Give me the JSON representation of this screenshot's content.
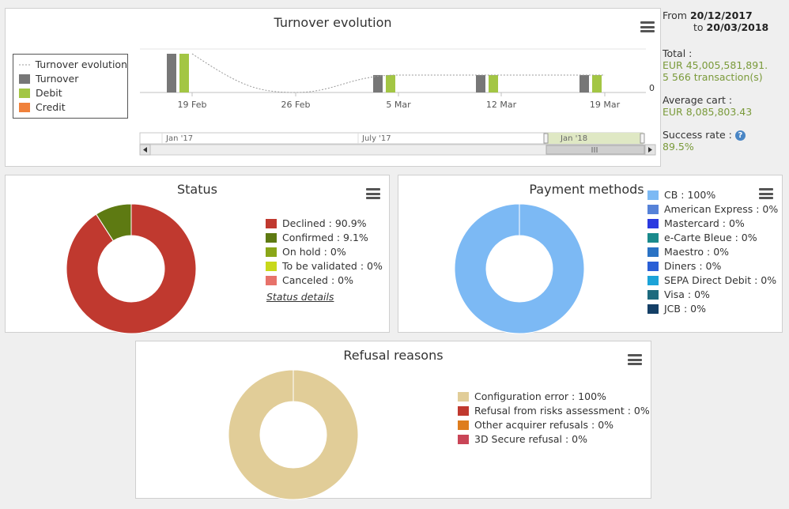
{
  "turnover": {
    "title": "Turnover evolution",
    "legend": [
      {
        "name": "Turnover evolution",
        "type": "dashed"
      },
      {
        "name": "Turnover",
        "color": "#777777"
      },
      {
        "name": "Debit",
        "color": "#a3c644"
      },
      {
        "name": "Credit",
        "color": "#f0813b"
      }
    ],
    "zero_label": "0",
    "x_ticks": [
      "19 Feb",
      "26 Feb",
      "5 Mar",
      "12 Mar",
      "19 Mar"
    ],
    "navigator_ticks": [
      "Jan '17",
      "July '17",
      "Jan '18"
    ]
  },
  "stats": {
    "from_label": "From",
    "from_date": "20/12/2017",
    "to_label": "to",
    "to_date": "20/03/2018",
    "total_label": "Total :",
    "total_amount": "EUR 45,005,581,891.",
    "transactions": "5 566 transaction(s)",
    "avg_label": "Average cart :",
    "avg_value": "EUR 8,085,803.43",
    "success_label": "Success rate :",
    "success_value": "89.5%"
  },
  "status": {
    "title": "Status",
    "legend": [
      {
        "label": "Declined : 90.9%",
        "color": "#c0392f"
      },
      {
        "label": "Confirmed : 9.1%",
        "color": "#5e7a12"
      },
      {
        "label": "On hold : 0%",
        "color": "#8aa618"
      },
      {
        "label": "To be validated : 0%",
        "color": "#c8d81a"
      },
      {
        "label": "Canceled : 0%",
        "color": "#e7726a"
      }
    ],
    "link": "Status details"
  },
  "payment": {
    "title": "Payment methods",
    "legend": [
      {
        "label": "CB : 100%",
        "color": "#7cb9f4"
      },
      {
        "label": "American Express : 0%",
        "color": "#5682d8"
      },
      {
        "label": "Mastercard : 0%",
        "color": "#2b3ae0"
      },
      {
        "label": "e-Carte Bleue : 0%",
        "color": "#1a8a8c"
      },
      {
        "label": "Maestro : 0%",
        "color": "#2a72c4"
      },
      {
        "label": "Diners : 0%",
        "color": "#2a5fd6"
      },
      {
        "label": "SEPA Direct Debit : 0%",
        "color": "#1ca3d8"
      },
      {
        "label": "Visa : 0%",
        "color": "#1d6a7e"
      },
      {
        "label": "JCB : 0%",
        "color": "#143f66"
      }
    ]
  },
  "refusal": {
    "title": "Refusal reasons",
    "legend": [
      {
        "label": "Configuration error : 100%",
        "color": "#e1cd98"
      },
      {
        "label": "Refusal from risks assessment : 0%",
        "color": "#c0392f"
      },
      {
        "label": "Other acquirer refusals : 0%",
        "color": "#de7d1e"
      },
      {
        "label": "3D Secure refusal : 0%",
        "color": "#c94557"
      }
    ]
  },
  "chart_data": [
    {
      "type": "bar",
      "categories": [
        "19 Feb",
        "26 Feb",
        "5 Mar",
        "12 Mar",
        "19 Mar"
      ],
      "series": [
        {
          "name": "Turnover",
          "values": [
            1.0,
            0,
            0.45,
            0.45,
            0.45
          ]
        },
        {
          "name": "Debit",
          "values": [
            1.0,
            0,
            0.45,
            0.45,
            0.45
          ]
        },
        {
          "name": "Credit",
          "values": [
            0,
            0,
            0,
            0,
            0
          ]
        },
        {
          "name": "Turnover evolution",
          "values": [
            1.0,
            0,
            0.45,
            0.45,
            0.45
          ]
        }
      ],
      "title": "Turnover evolution"
    },
    {
      "type": "pie",
      "title": "Status",
      "labels": [
        "Declined",
        "Confirmed",
        "On hold",
        "To be validated",
        "Canceled"
      ],
      "values": [
        90.9,
        9.1,
        0,
        0,
        0
      ]
    },
    {
      "type": "pie",
      "title": "Payment methods",
      "labels": [
        "CB",
        "American Express",
        "Mastercard",
        "e-Carte Bleue",
        "Maestro",
        "Diners",
        "SEPA Direct Debit",
        "Visa",
        "JCB"
      ],
      "values": [
        100,
        0,
        0,
        0,
        0,
        0,
        0,
        0,
        0
      ]
    },
    {
      "type": "pie",
      "title": "Refusal reasons",
      "labels": [
        "Configuration error",
        "Refusal from risks assessment",
        "Other acquirer refusals",
        "3D Secure refusal"
      ],
      "values": [
        100,
        0,
        0,
        0
      ]
    }
  ]
}
